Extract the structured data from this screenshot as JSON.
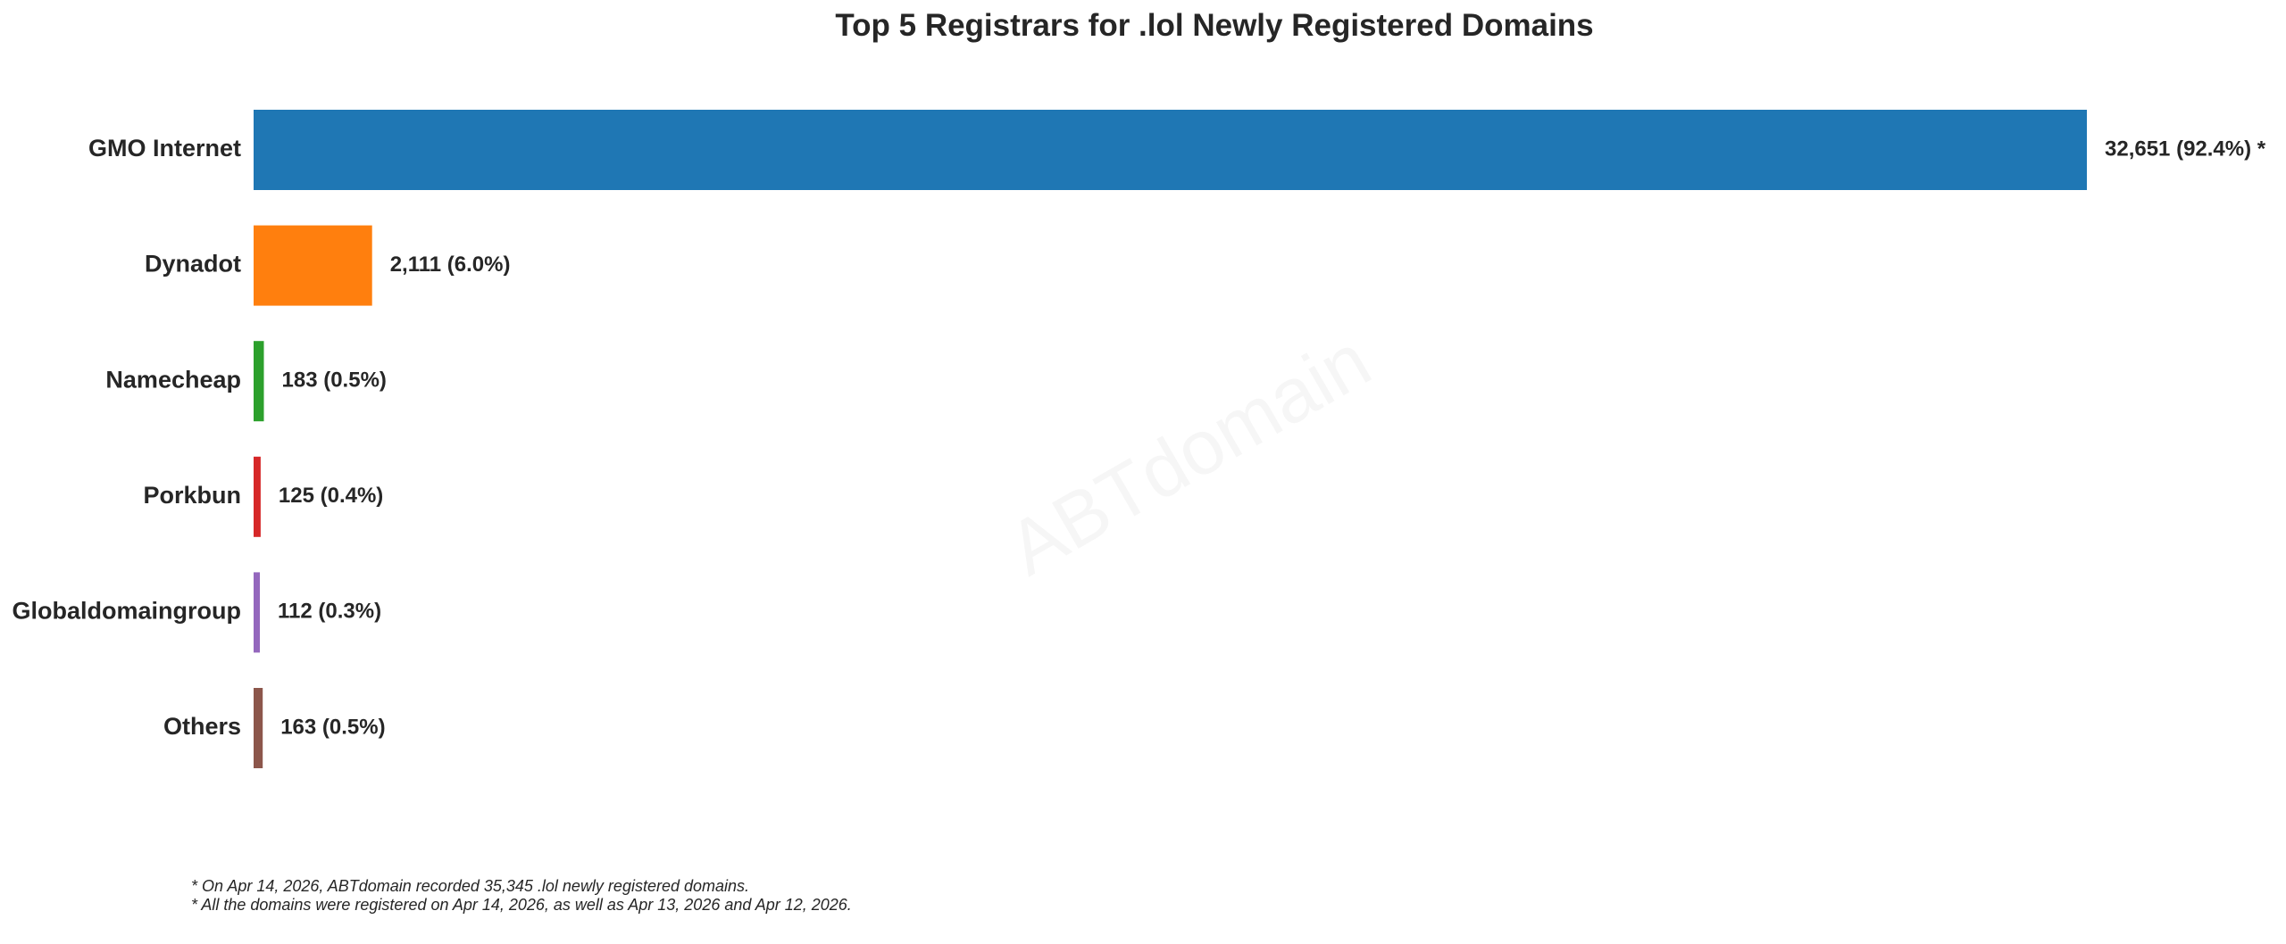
{
  "chart_data": {
    "type": "bar",
    "orientation": "horizontal",
    "title": "Top 5 Registrars for .lol Newly Registered Domains",
    "categories": [
      "GMO Internet",
      "Dynadot",
      "Namecheap",
      "Porkbun",
      "Globaldomaingroup",
      "Others"
    ],
    "values": [
      32651,
      2111,
      183,
      125,
      112,
      163
    ],
    "value_labels": [
      "32,651 (92.4%) *",
      "2,111 (6.0%)",
      "183 (0.5%)",
      "125 (0.4%)",
      "112 (0.3%)",
      "163 (0.5%)"
    ],
    "colors": [
      "#1f77b4",
      "#ff7f0e",
      "#2ca02c",
      "#d62728",
      "#9467bd",
      "#8c564b"
    ],
    "xlim": [
      0,
      32651
    ],
    "grid": false,
    "axes_visible": false,
    "watermark": "ABTdomain",
    "footnotes": [
      "* On Apr 14, 2026, ABTdomain recorded 35,345 .lol newly registered domains.",
      "* All the domains were registered on Apr 14, 2026, as well as Apr 13, 2026 and Apr 12, 2026."
    ]
  }
}
